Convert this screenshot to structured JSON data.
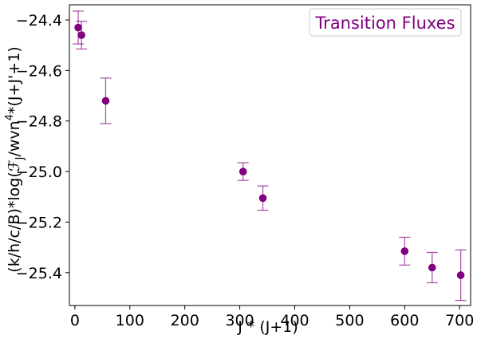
{
  "chart_data": {
    "type": "scatter",
    "xlabel": "J * (J+1)",
    "ylabel": "(k/h/c/B)*log(ℱ",
    "ylabel_sub": "J",
    "ylabel_mid": "/wvn",
    "ylabel_sup": "4",
    "ylabel_end": "*(J+J'+1)",
    "legend_entries": [
      "Transition Fluxes"
    ],
    "legend_position": "top-right",
    "grid": false,
    "xlim": [
      -10,
      720
    ],
    "ylim": [
      -25.53,
      -24.34
    ],
    "xticks": [
      0,
      100,
      200,
      300,
      400,
      500,
      600,
      700
    ],
    "xtick_labels": [
      "0",
      "100",
      "200",
      "300",
      "400",
      "500",
      "600",
      "700"
    ],
    "yticks": [
      -24.4,
      -24.6,
      -24.8,
      -25.0,
      -25.2,
      -25.4
    ],
    "ytick_labels": [
      "−24.4",
      "−24.6",
      "−24.8",
      "−25.0",
      "−25.2",
      "−25.4"
    ],
    "series": [
      {
        "name": "Transition Fluxes",
        "color": "#800080",
        "x": [
          6,
          12,
          56,
          306,
          342,
          600,
          650,
          702
        ],
        "y": [
          -24.43,
          -24.46,
          -24.72,
          -25.0,
          -25.105,
          -25.315,
          -25.38,
          -25.41
        ],
        "yerr": [
          0.065,
          0.055,
          0.09,
          0.035,
          0.048,
          0.055,
          0.06,
          0.1
        ]
      }
    ]
  }
}
